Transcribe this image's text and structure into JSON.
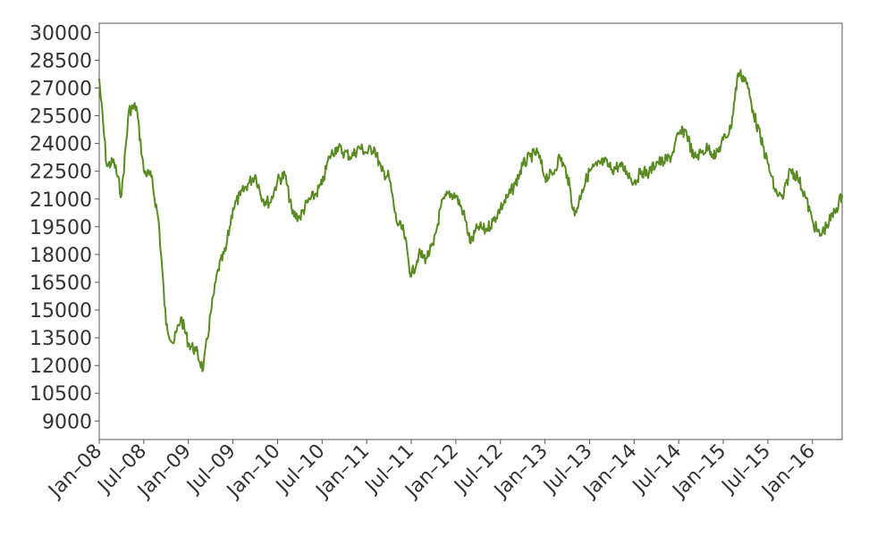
{
  "chart_data": {
    "type": "line",
    "title": "",
    "xlabel": "",
    "ylabel": "",
    "x_ticks": [
      "Jan–08",
      "Jul–08",
      "Jan–09",
      "Jul–09",
      "Jan–10",
      "Jul–10",
      "Jan–11",
      "Jul–11",
      "Jan–12",
      "Jul–12",
      "Jan–13",
      "Jul–13",
      "Jan–14",
      "Jul–14",
      "Jan–15",
      "Jul–15",
      "Jan–16"
    ],
    "y_ticks": [
      9000,
      10500,
      12000,
      13500,
      15000,
      16500,
      18000,
      19500,
      21000,
      22500,
      24000,
      25500,
      27000,
      28500,
      30000
    ],
    "ylim": [
      8000,
      30500
    ],
    "xlim": [
      "2008-01",
      "2016-05"
    ],
    "grid": false,
    "legend": "none",
    "series": [
      {
        "color": "#5a8a22",
        "x": [
          "2008-01",
          "2008-02",
          "2008-03",
          "2008-04",
          "2008-05",
          "2008-06",
          "2008-07",
          "2008-08",
          "2008-09",
          "2008-10",
          "2008-11",
          "2008-12",
          "2009-01",
          "2009-02",
          "2009-03",
          "2009-04",
          "2009-05",
          "2009-06",
          "2009-07",
          "2009-08",
          "2009-09",
          "2009-10",
          "2009-11",
          "2009-12",
          "2010-01",
          "2010-02",
          "2010-03",
          "2010-04",
          "2010-05",
          "2010-06",
          "2010-07",
          "2010-08",
          "2010-09",
          "2010-10",
          "2010-11",
          "2010-12",
          "2011-01",
          "2011-02",
          "2011-03",
          "2011-04",
          "2011-05",
          "2011-06",
          "2011-07",
          "2011-08",
          "2011-09",
          "2011-10",
          "2011-11",
          "2011-12",
          "2012-01",
          "2012-02",
          "2012-03",
          "2012-04",
          "2012-05",
          "2012-06",
          "2012-07",
          "2012-08",
          "2012-09",
          "2012-10",
          "2012-11",
          "2012-12",
          "2013-01",
          "2013-02",
          "2013-03",
          "2013-04",
          "2013-05",
          "2013-06",
          "2013-07",
          "2013-08",
          "2013-09",
          "2013-10",
          "2013-11",
          "2013-12",
          "2014-01",
          "2014-02",
          "2014-03",
          "2014-04",
          "2014-05",
          "2014-06",
          "2014-07",
          "2014-08",
          "2014-09",
          "2014-10",
          "2014-11",
          "2014-12",
          "2015-01",
          "2015-02",
          "2015-03",
          "2015-04",
          "2015-05",
          "2015-06",
          "2015-07",
          "2015-08",
          "2015-09",
          "2015-10",
          "2015-11",
          "2015-12",
          "2016-01",
          "2016-02",
          "2016-03",
          "2016-04",
          "2016-05"
        ],
        "values": [
          27500,
          22800,
          23000,
          21200,
          25800,
          26000,
          22500,
          22200,
          19800,
          14200,
          13200,
          14600,
          13200,
          12800,
          11800,
          14800,
          17200,
          18200,
          20500,
          21200,
          21800,
          22300,
          21000,
          20800,
          22000,
          22300,
          20200,
          20000,
          20800,
          21200,
          21800,
          23300,
          23800,
          23500,
          23300,
          23800,
          23500,
          23800,
          22500,
          22200,
          19800,
          19200,
          16800,
          18000,
          17800,
          18500,
          20600,
          21300,
          21200,
          20300,
          18600,
          19500,
          19300,
          19800,
          20500,
          21100,
          21800,
          22800,
          23300,
          23500,
          22200,
          22300,
          23300,
          22300,
          20100,
          21500,
          22500,
          22800,
          23000,
          22600,
          22800,
          22500,
          21900,
          22500,
          22400,
          23000,
          23000,
          23300,
          24500,
          24700,
          23200,
          23500,
          23800,
          23300,
          24200,
          24800,
          27800,
          27500,
          25800,
          24300,
          22900,
          21400,
          21000,
          22600,
          22200,
          21200,
          19800,
          19000,
          19600,
          20300,
          21200
        ]
      }
    ]
  }
}
